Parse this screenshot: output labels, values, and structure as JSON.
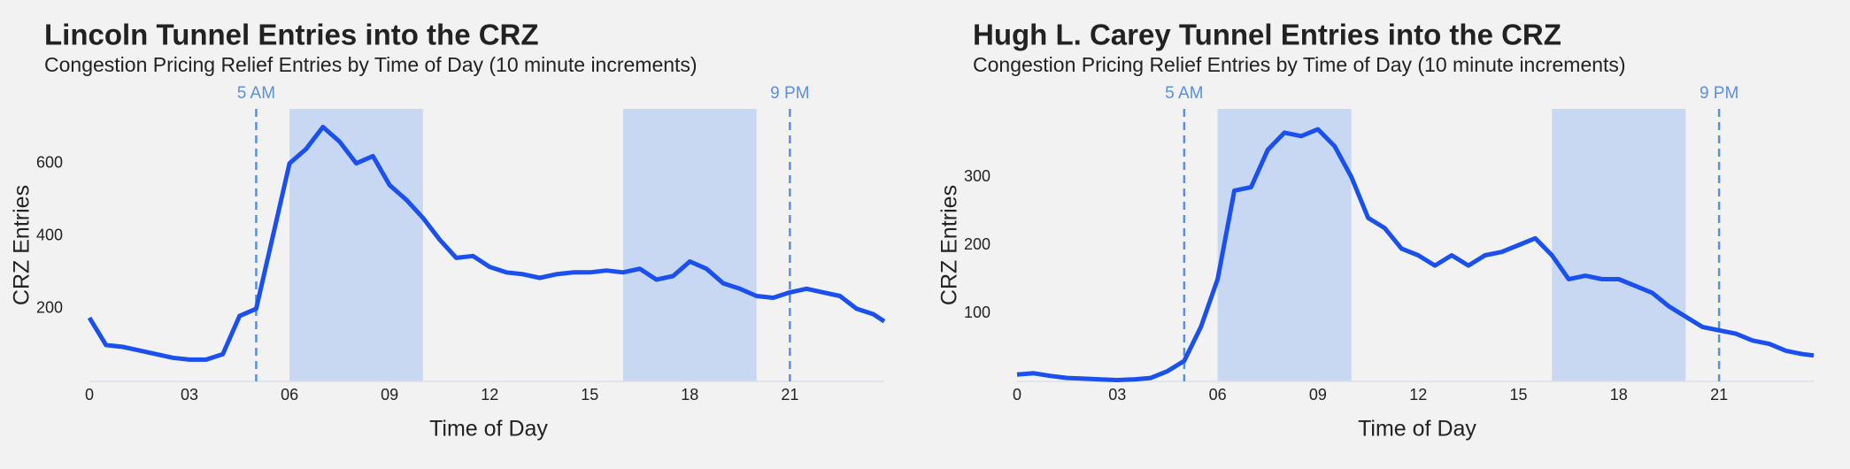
{
  "chart_data": [
    {
      "type": "line",
      "title": "Lincoln Tunnel Entries into the CRZ",
      "subtitle": "Congestion Pricing Relief Entries by Time of Day (10 minute increments)",
      "x_label": "Time of Day",
      "y_label": "CRZ Entries",
      "x": [
        0,
        0.5,
        1,
        1.5,
        2,
        2.5,
        3,
        3.5,
        4,
        4.5,
        5,
        5.5,
        6,
        6.5,
        7,
        7.5,
        8,
        8.5,
        9,
        9.5,
        10,
        10.5,
        11,
        11.5,
        12,
        12.5,
        13,
        13.5,
        14,
        14.5,
        15,
        15.5,
        16,
        16.5,
        17,
        17.5,
        18,
        18.5,
        19,
        19.5,
        20,
        20.5,
        21,
        21.5,
        22,
        22.5,
        23,
        23.5,
        23.83
      ],
      "series": [
        {
          "color": "#1a4ff0",
          "values": [
            175,
            100,
            95,
            85,
            75,
            65,
            60,
            60,
            75,
            180,
            200,
            400,
            600,
            640,
            700,
            660,
            600,
            620,
            540,
            500,
            450,
            390,
            340,
            345,
            315,
            300,
            295,
            285,
            295,
            300,
            300,
            305,
            300,
            310,
            280,
            290,
            330,
            310,
            270,
            255,
            235,
            230,
            245,
            255,
            245,
            235,
            200,
            185,
            165
          ]
        }
      ],
      "xlim": [
        0,
        23.83
      ],
      "ylim": [
        0,
        750
      ],
      "xticks": [
        0,
        {
          "value": 3,
          "label": "03"
        },
        {
          "value": 6,
          "label": "06"
        },
        {
          "value": 9,
          "label": "09"
        },
        {
          "value": 12,
          "label": "12"
        },
        {
          "value": 15,
          "label": "15"
        },
        {
          "value": 18,
          "label": "18"
        },
        {
          "value": 21,
          "label": "21"
        }
      ],
      "yticks": [
        200,
        400,
        600
      ],
      "spans": [
        [
          6,
          10
        ],
        [
          16,
          20
        ]
      ],
      "span_color": "#c8d8f2",
      "annotations": [
        {
          "x": 5,
          "label": "5 AM"
        },
        {
          "x": 21,
          "label": "9 PM"
        }
      ],
      "annotation_color": "#5b8fe0"
    },
    {
      "type": "line",
      "title": "Hugh L. Carey Tunnel Entries into the CRZ",
      "subtitle": "Congestion Pricing Relief Entries by Time of Day (10 minute increments)",
      "x_label": "Time of Day",
      "y_label": "CRZ Entries",
      "x": [
        0,
        0.5,
        1,
        1.5,
        2,
        2.5,
        3,
        3.5,
        4,
        4.5,
        5,
        5.5,
        6,
        6.5,
        7,
        7.5,
        8,
        8.5,
        9,
        9.5,
        10,
        10.5,
        11,
        11.5,
        12,
        12.5,
        13,
        13.5,
        14,
        14.5,
        15,
        15.5,
        16,
        16.5,
        17,
        17.5,
        18,
        18.5,
        19,
        19.5,
        20,
        20.5,
        21,
        21.5,
        22,
        22.5,
        23,
        23.5,
        23.83
      ],
      "series": [
        {
          "color": "#1a4ff0",
          "values": [
            10,
            12,
            8,
            5,
            4,
            3,
            2,
            3,
            5,
            15,
            30,
            80,
            150,
            280,
            285,
            340,
            365,
            360,
            370,
            345,
            300,
            240,
            225,
            195,
            185,
            170,
            185,
            170,
            185,
            190,
            200,
            210,
            185,
            150,
            155,
            150,
            150,
            140,
            130,
            110,
            95,
            80,
            75,
            70,
            60,
            55,
            45,
            40,
            38
          ]
        }
      ],
      "xlim": [
        0,
        23.83
      ],
      "ylim": [
        0,
        400
      ],
      "xticks": [
        0,
        {
          "value": 3,
          "label": "03"
        },
        {
          "value": 6,
          "label": "06"
        },
        {
          "value": 9,
          "label": "09"
        },
        {
          "value": 12,
          "label": "12"
        },
        {
          "value": 15,
          "label": "15"
        },
        {
          "value": 18,
          "label": "18"
        },
        {
          "value": 21,
          "label": "21"
        }
      ],
      "yticks": [
        100,
        200,
        300
      ],
      "spans": [
        [
          6,
          10
        ],
        [
          16,
          20
        ]
      ],
      "span_color": "#c8d8f2",
      "annotations": [
        {
          "x": 5,
          "label": "5 AM"
        },
        {
          "x": 21,
          "label": "9 PM"
        }
      ],
      "annotation_color": "#5b8fe0"
    }
  ]
}
